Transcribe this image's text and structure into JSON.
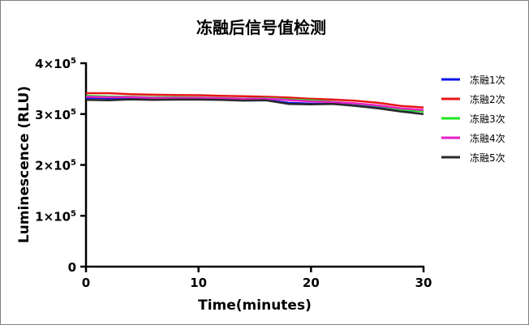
{
  "chart_data": {
    "type": "line",
    "title": "冻融后信号值检测",
    "xlabel": "Time(minutes)",
    "ylabel": "Luminescence (RLU)",
    "xlim": [
      0,
      30
    ],
    "ylim": [
      0,
      400000
    ],
    "x_ticks": [
      0,
      10,
      20,
      30
    ],
    "y_ticks": [
      {
        "value": 0,
        "label": "0"
      },
      {
        "value": 100000,
        "label": "1×10",
        "exp": "5"
      },
      {
        "value": 200000,
        "label": "2×10",
        "exp": "5"
      },
      {
        "value": 300000,
        "label": "3×10",
        "exp": "5"
      },
      {
        "value": 400000,
        "label": "4×10",
        "exp": "5"
      }
    ],
    "grid": false,
    "legend_position": "right",
    "x": [
      0,
      2,
      4,
      6,
      8,
      10,
      12,
      14,
      16,
      18,
      20,
      22,
      24,
      26,
      28,
      30
    ],
    "series": [
      {
        "name": "冻融1次",
        "color": "#0a14e6",
        "values": [
          332000,
          331000,
          331000,
          331500,
          331000,
          330500,
          329500,
          328500,
          327500,
          322000,
          320500,
          320000,
          317000,
          313000,
          307000,
          306000
        ]
      },
      {
        "name": "冻融2次",
        "color": "#e61414",
        "values": [
          341000,
          341000,
          339000,
          338000,
          337500,
          337000,
          336000,
          335000,
          334000,
          332500,
          330000,
          328500,
          326000,
          322000,
          316000,
          313000
        ]
      },
      {
        "name": "冻融3次",
        "color": "#1ee61e",
        "values": [
          336000,
          334500,
          334000,
          333000,
          333000,
          332500,
          331500,
          330500,
          331500,
          329000,
          327000,
          324000,
          320500,
          316000,
          309000,
          305000
        ]
      },
      {
        "name": "冻融4次",
        "color": "#e61ec8",
        "values": [
          334000,
          333000,
          333500,
          332000,
          332000,
          332000,
          331000,
          330000,
          330500,
          327500,
          325000,
          323500,
          321000,
          317000,
          311000,
          308000
        ]
      },
      {
        "name": "冻融5次",
        "color": "#2a2a2a",
        "values": [
          328000,
          327000,
          329000,
          328000,
          328500,
          328500,
          328000,
          326500,
          327000,
          320000,
          319000,
          320000,
          316000,
          311000,
          305000,
          300000
        ]
      }
    ]
  }
}
